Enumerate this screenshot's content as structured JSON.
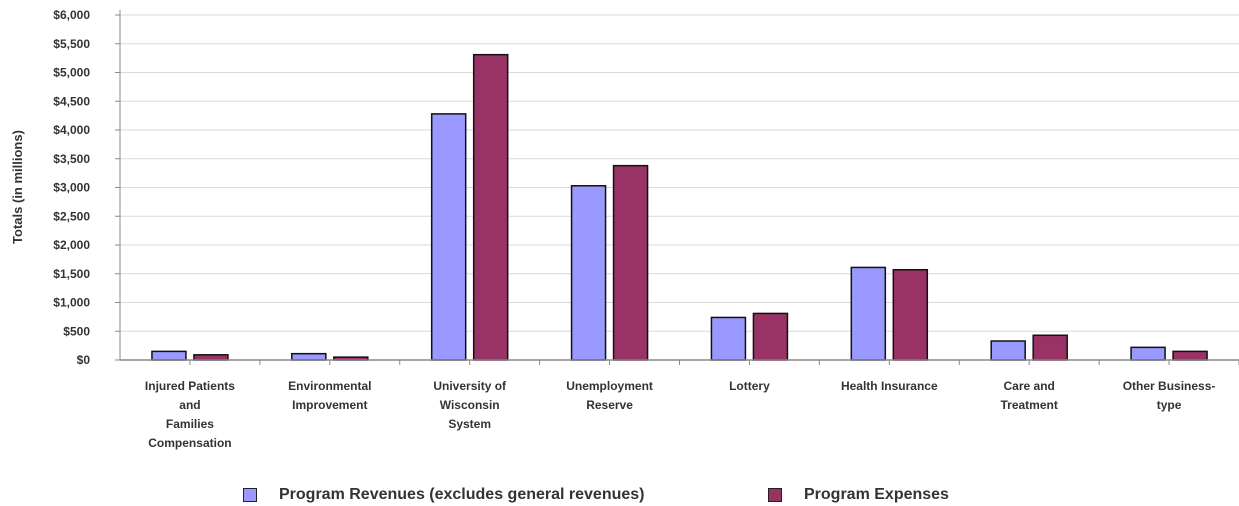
{
  "chart_data": {
    "type": "bar",
    "title": "",
    "xlabel": "",
    "ylabel": "Totals (in millions)",
    "ylim": [
      0,
      6000
    ],
    "ytick_step": 500,
    "ytick_labels": [
      "$0",
      "$500",
      "$1,000",
      "$1,500",
      "$2,000",
      "$2,500",
      "$3,000",
      "$3,500",
      "$4,000",
      "$4,500",
      "$5,000",
      "$5,500",
      "$6,000"
    ],
    "grid": true,
    "legend_position": "bottom",
    "categories": [
      [
        "Injured Patients",
        "and",
        "Families",
        "Compensation"
      ],
      [
        "Environmental",
        "Improvement"
      ],
      [
        "University of",
        "Wisconsin",
        "System"
      ],
      [
        "Unemployment",
        "Reserve"
      ],
      [
        "Lottery"
      ],
      [
        "Health Insurance"
      ],
      [
        "Care and",
        "Treatment"
      ],
      [
        "Other Business-",
        "type"
      ]
    ],
    "series": [
      {
        "name": "Program Revenues (excludes general revenues)",
        "color": "#9999ff",
        "values": [
          150,
          110,
          4280,
          3030,
          740,
          1610,
          330,
          220
        ]
      },
      {
        "name": "Program Expenses",
        "color": "#993366",
        "values": [
          90,
          50,
          5310,
          3380,
          810,
          1570,
          430,
          150
        ]
      }
    ]
  }
}
